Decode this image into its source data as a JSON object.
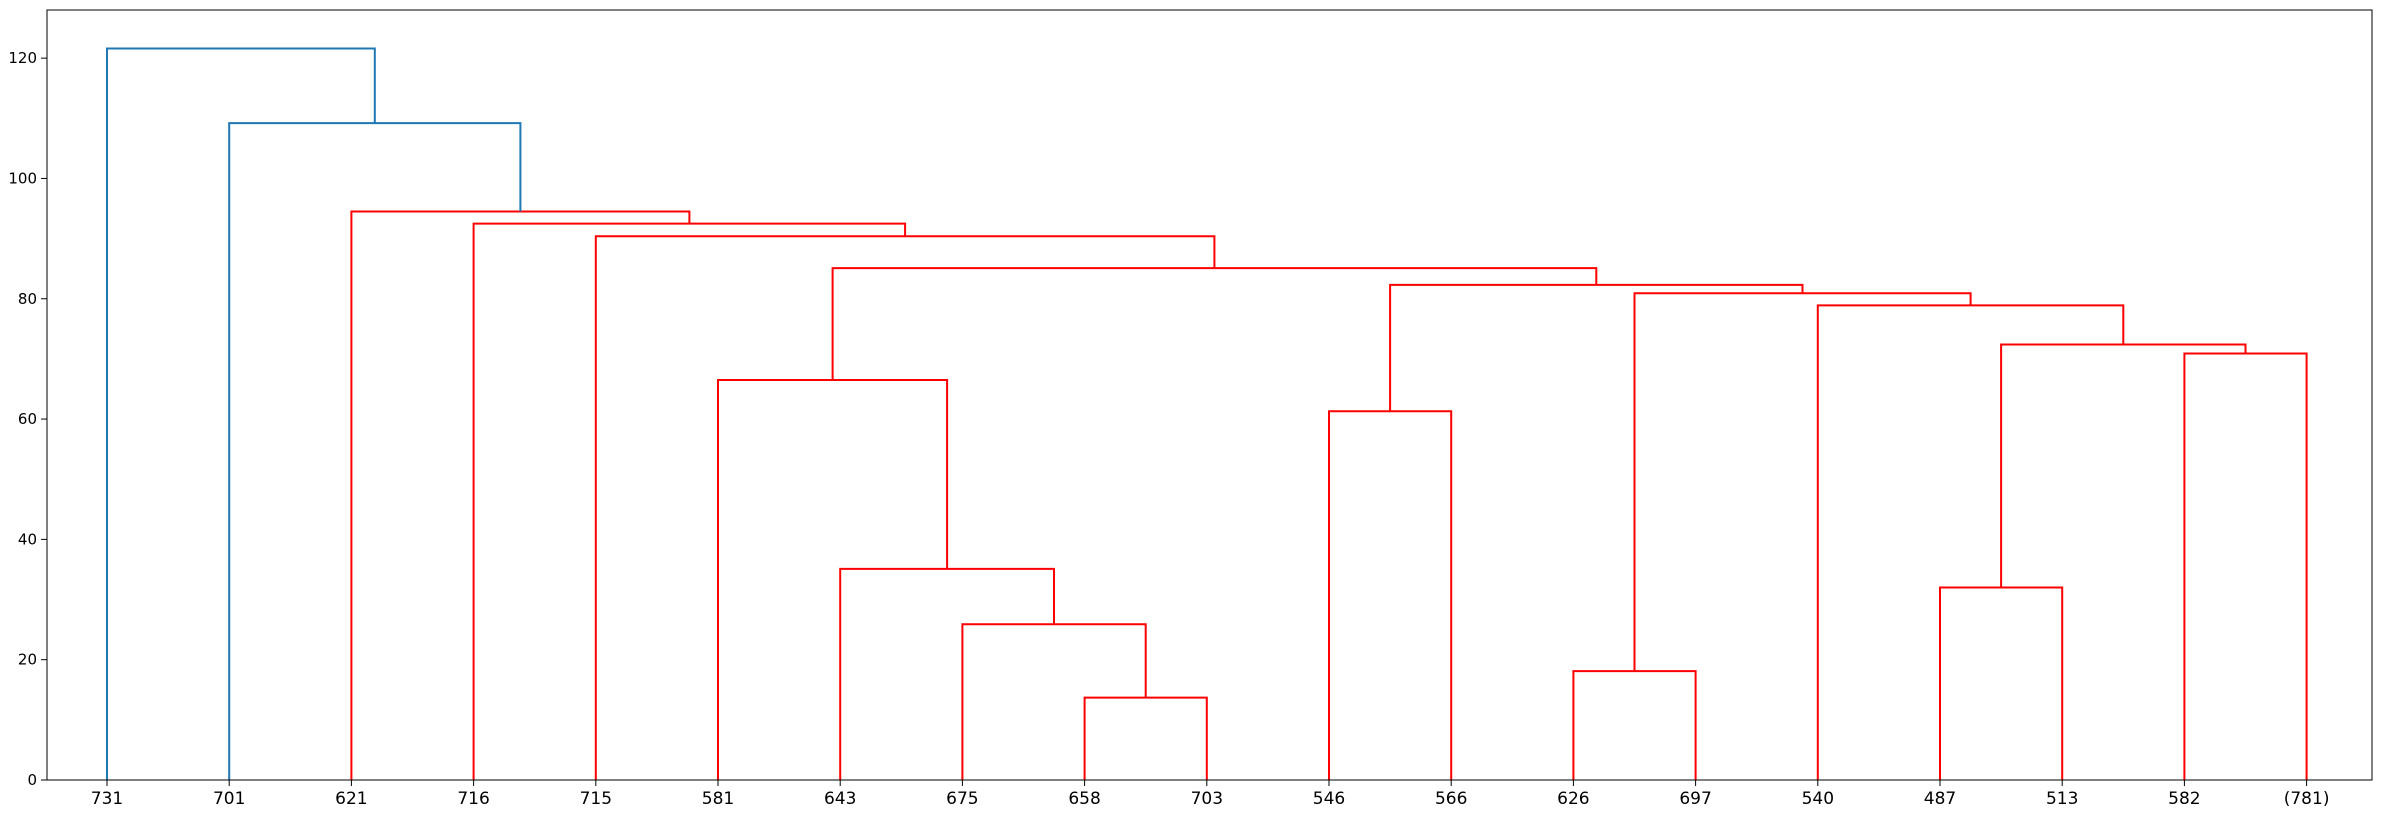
{
  "chart_data": {
    "type": "dendrogram",
    "title": "",
    "xlabel": "",
    "ylabel": "",
    "ylim": [
      0,
      128
    ],
    "yticks": [
      0,
      20,
      40,
      60,
      80,
      100,
      120
    ],
    "leaves": [
      "731",
      "701",
      "621",
      "716",
      "715",
      "581",
      "643",
      "675",
      "658",
      "703",
      "546",
      "566",
      "626",
      "697",
      "540",
      "487",
      "513",
      "582",
      "(781)"
    ],
    "merges": [
      {
        "left": "leaf:8",
        "right": "leaf:9",
        "height": 13.7,
        "color": "#ff0000"
      },
      {
        "left": "leaf:7",
        "right": "node:0",
        "height": 25.9,
        "color": "#ff0000"
      },
      {
        "left": "leaf:6",
        "right": "node:1",
        "height": 35.1,
        "color": "#ff0000"
      },
      {
        "left": "leaf:5",
        "right": "node:2",
        "height": 66.5,
        "color": "#ff0000"
      },
      {
        "left": "leaf:10",
        "right": "leaf:11",
        "height": 61.3,
        "color": "#ff0000"
      },
      {
        "left": "leaf:12",
        "right": "leaf:13",
        "height": 18.1,
        "color": "#ff0000"
      },
      {
        "left": "leaf:15",
        "right": "leaf:16",
        "height": 32.0,
        "color": "#ff0000"
      },
      {
        "left": "leaf:17",
        "right": "leaf:18",
        "height": 70.9,
        "color": "#ff0000"
      },
      {
        "left": "node:6",
        "right": "node:7",
        "height": 72.4,
        "color": "#ff0000"
      },
      {
        "left": "leaf:14",
        "right": "node:8",
        "height": 78.9,
        "color": "#ff0000"
      },
      {
        "left": "node:5",
        "right": "node:9",
        "height": 80.9,
        "color": "#ff0000"
      },
      {
        "left": "node:4",
        "right": "node:10",
        "height": 82.3,
        "color": "#ff0000"
      },
      {
        "left": "node:3",
        "right": "node:11",
        "height": 85.1,
        "color": "#ff0000"
      },
      {
        "left": "leaf:4",
        "right": "node:12",
        "height": 90.4,
        "color": "#ff0000"
      },
      {
        "left": "leaf:3",
        "right": "node:13",
        "height": 92.5,
        "color": "#ff0000"
      },
      {
        "left": "leaf:2",
        "right": "node:14",
        "height": 94.5,
        "color": "#ff0000"
      },
      {
        "left": "leaf:1",
        "right": "node:15",
        "height": 109.2,
        "color": "#1f77b4"
      },
      {
        "left": "leaf:0",
        "right": "node:16",
        "height": 121.6,
        "color": "#1f77b4"
      }
    ],
    "colors": {
      "above_threshold": "#1f77b4",
      "cluster": "#ff0000",
      "axes": "#000000"
    },
    "grid": false
  }
}
